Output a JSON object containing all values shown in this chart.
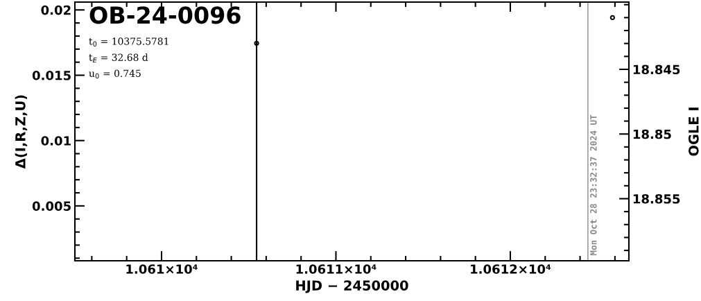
{
  "chart_data": {
    "type": "scatter",
    "title": "OB-24-0096",
    "xlabel": "HJD − 2450000",
    "ylabel": "Δ(I,R,Z,U)",
    "y2label": "OGLE I",
    "xlim": [
      10609.503,
      10612.68
    ],
    "xticks": [
      {
        "value": 10610,
        "label": "1.061×10⁴"
      },
      {
        "value": 10611,
        "label": "1.0611×10⁴"
      },
      {
        "value": 10612,
        "label": "1.0612×10⁴"
      }
    ],
    "ylim": [
      0.0008,
      0.0206
    ],
    "yticks": [
      0.005,
      0.01,
      0.015,
      0.02
    ],
    "y2lim": [
      18.8598,
      18.8398
    ],
    "y2ticks": [
      18.845,
      18.85,
      18.855
    ],
    "annotations": [
      "t$_{0}$ = 10375.5781",
      "t$_{E}$ = 32.68 d",
      "u$_{0}$ = 0.745",
      {
        "text": "Mon Oct 28 23:32:37 2024 UT",
        "x": 10612.445,
        "y": 0.0012
      }
    ],
    "ref_lines": [
      {
        "axis": "x",
        "value": 10610.545,
        "color": "#000000"
      },
      {
        "axis": "x",
        "value": 10612.445,
        "color": "#888888"
      }
    ],
    "marker": "circle",
    "grid": false,
    "series": [
      {
        "x": [
          10610.545
        ],
        "values": [
          0.01745
        ],
        "color": "#000000"
      },
      {
        "x": [
          10612.586
        ],
        "values": [
          18.841
        ],
        "axis": "y2",
        "color": "#000000"
      }
    ]
  }
}
